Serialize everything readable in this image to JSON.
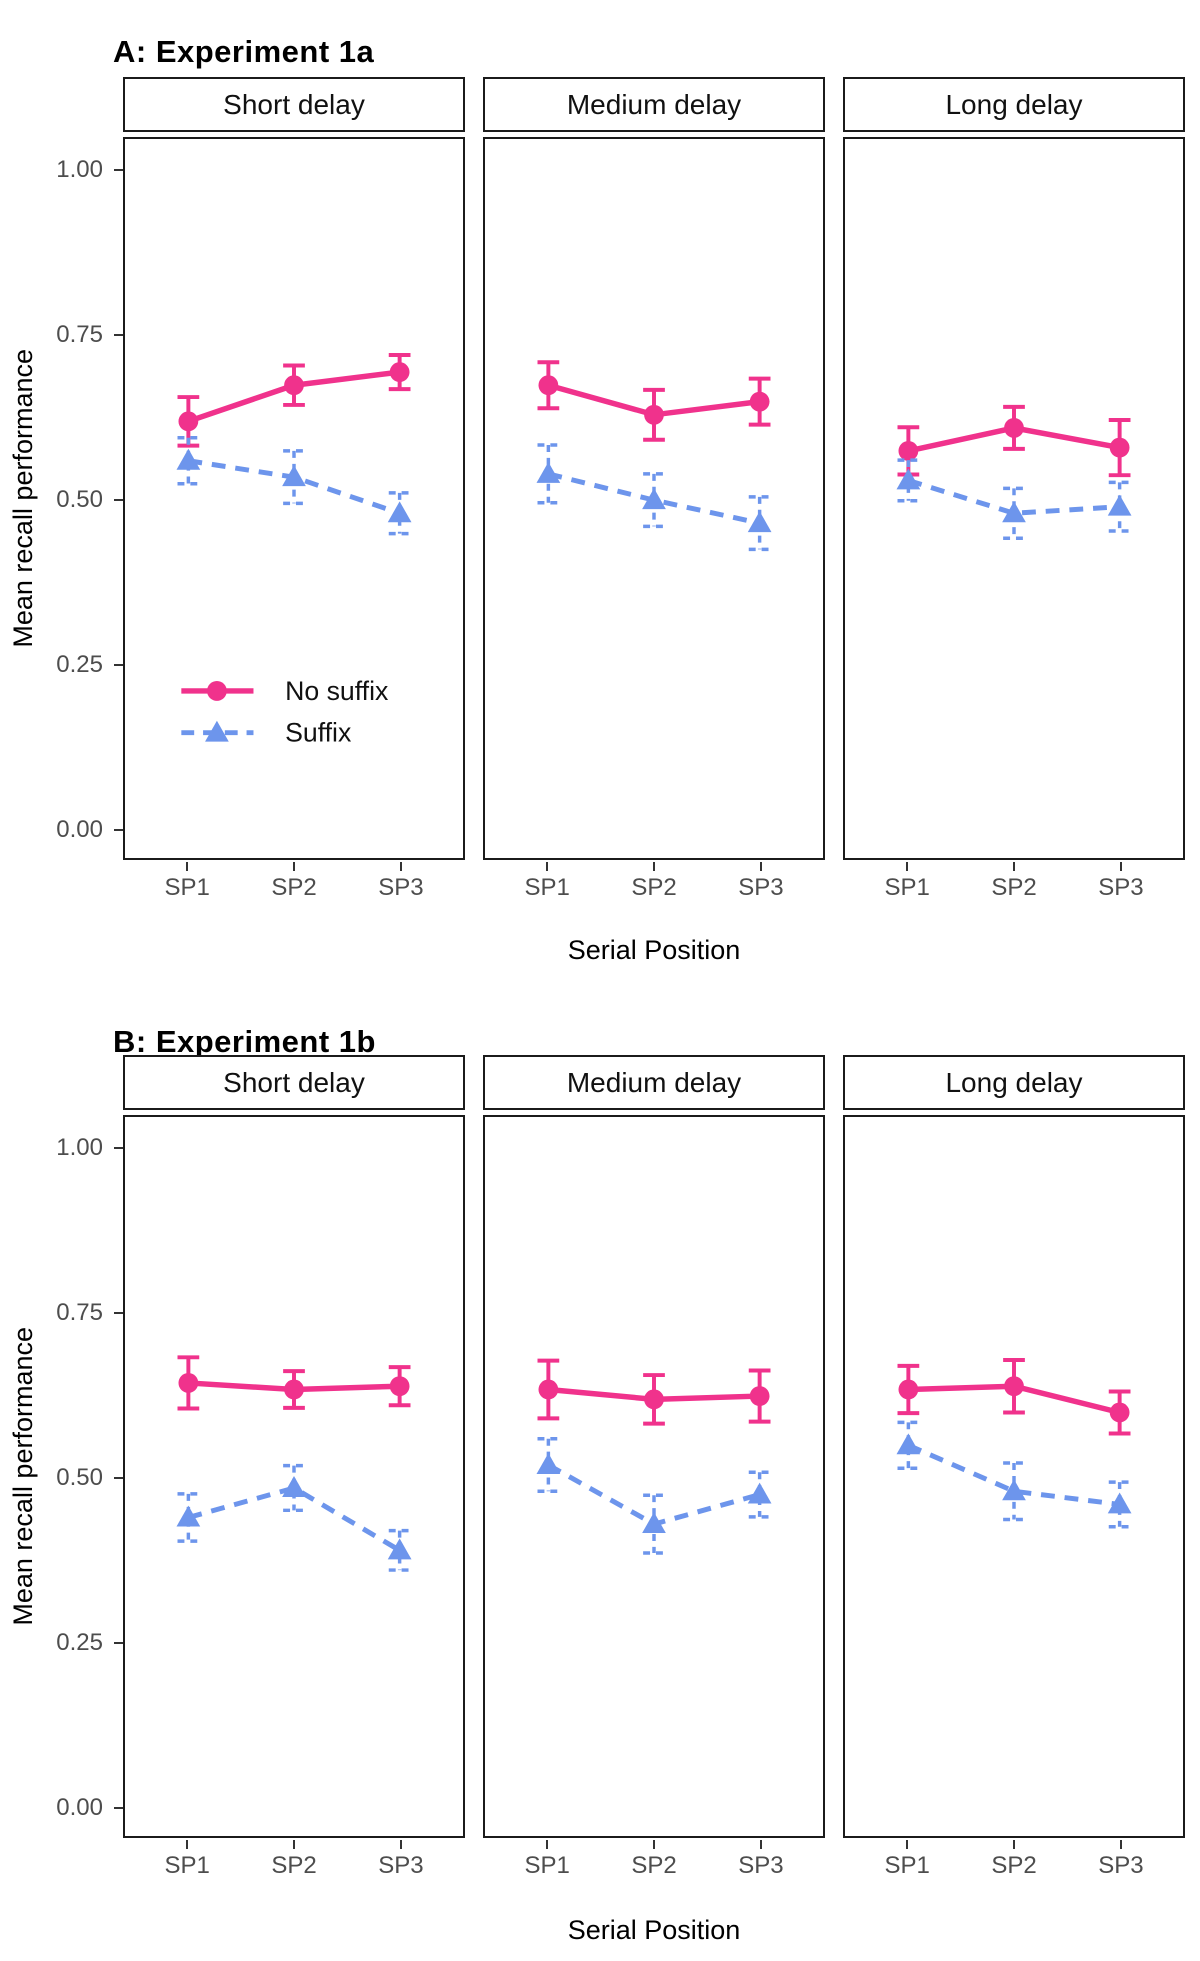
{
  "figure": {
    "background": "#ffffff",
    "colors": {
      "no_suffix": "#F0328C",
      "suffix": "#6D95EC",
      "axis_text": "#4d4d4d",
      "border": "#1b1b1b"
    },
    "legend": {
      "position": "inside-panel-A-first-facet",
      "items": [
        {
          "label": "No suffix",
          "marker": "circle",
          "line": "solid",
          "color_key": "no_suffix"
        },
        {
          "label": "Suffix",
          "marker": "triangle",
          "line": "dashed",
          "color_key": "suffix"
        }
      ]
    },
    "axes": {
      "y_label": "Mean recall performance",
      "x_label": "Serial Position",
      "y_ticks": [
        {
          "label": "1.00",
          "value": 1.0
        },
        {
          "label": "0.75",
          "value": 0.75
        },
        {
          "label": "0.50",
          "value": 0.5
        },
        {
          "label": "0.25",
          "value": 0.25
        },
        {
          "label": "0.00",
          "value": 0.0
        }
      ],
      "x_ticks": [
        "SP1",
        "SP2",
        "SP3"
      ],
      "ylim": [
        -0.045,
        1.05
      ],
      "grid": "none"
    }
  },
  "chart_data": [
    {
      "panel": "A",
      "title": "A: Experiment 1a",
      "type": "line",
      "x_categories": [
        "SP1",
        "SP2",
        "SP3"
      ],
      "xlabel": "Serial Position",
      "ylabel": "Mean recall performance",
      "yticks": [
        0,
        0.25,
        0.5,
        0.75,
        1.0
      ],
      "ylim": [
        -0.045,
        1.05
      ],
      "legend_visible": true,
      "facets": [
        {
          "label": "Short delay",
          "series": [
            {
              "name": "No suffix",
              "values": [
                0.62,
                0.675,
                0.695
              ],
              "errors": [
                0.037,
                0.03,
                0.026
              ]
            },
            {
              "name": "Suffix",
              "values": [
                0.56,
                0.535,
                0.48
              ],
              "errors": [
                0.035,
                0.04,
                0.031
              ]
            }
          ]
        },
        {
          "label": "Medium delay",
          "series": [
            {
              "name": "No suffix",
              "values": [
                0.675,
                0.63,
                0.65
              ],
              "errors": [
                0.035,
                0.038,
                0.035
              ]
            },
            {
              "name": "Suffix",
              "values": [
                0.54,
                0.5,
                0.465
              ],
              "errors": [
                0.044,
                0.04,
                0.04
              ]
            }
          ]
        },
        {
          "label": "Long delay",
          "series": [
            {
              "name": "No suffix",
              "values": [
                0.575,
                0.61,
                0.58
              ],
              "errors": [
                0.036,
                0.032,
                0.042
              ]
            },
            {
              "name": "Suffix",
              "values": [
                0.53,
                0.48,
                0.49
              ],
              "errors": [
                0.031,
                0.038,
                0.037
              ]
            }
          ]
        }
      ]
    },
    {
      "panel": "B",
      "title": "B: Experiment 1b",
      "type": "line",
      "x_categories": [
        "SP1",
        "SP2",
        "SP3"
      ],
      "xlabel": "Serial Position",
      "ylabel": "Mean recall performance",
      "yticks": [
        0,
        0.25,
        0.5,
        0.75,
        1.0
      ],
      "ylim": [
        -0.045,
        1.05
      ],
      "legend_visible": false,
      "facets": [
        {
          "label": "Short delay",
          "series": [
            {
              "name": "No suffix",
              "values": [
                0.645,
                0.635,
                0.64
              ],
              "errors": [
                0.039,
                0.028,
                0.029
              ]
            },
            {
              "name": "Suffix",
              "values": [
                0.44,
                0.485,
                0.39
              ],
              "errors": [
                0.036,
                0.034,
                0.03
              ]
            }
          ]
        },
        {
          "label": "Medium delay",
          "series": [
            {
              "name": "No suffix",
              "values": [
                0.635,
                0.62,
                0.625
              ],
              "errors": [
                0.044,
                0.037,
                0.039
              ]
            },
            {
              "name": "Suffix",
              "values": [
                0.52,
                0.43,
                0.475
              ],
              "errors": [
                0.04,
                0.044,
                0.034
              ]
            }
          ]
        },
        {
          "label": "Long delay",
          "series": [
            {
              "name": "No suffix",
              "values": [
                0.635,
                0.64,
                0.6
              ],
              "errors": [
                0.036,
                0.04,
                0.032
              ]
            },
            {
              "name": "Suffix",
              "values": [
                0.55,
                0.48,
                0.46
              ],
              "errors": [
                0.035,
                0.043,
                0.034
              ]
            }
          ]
        }
      ]
    }
  ]
}
